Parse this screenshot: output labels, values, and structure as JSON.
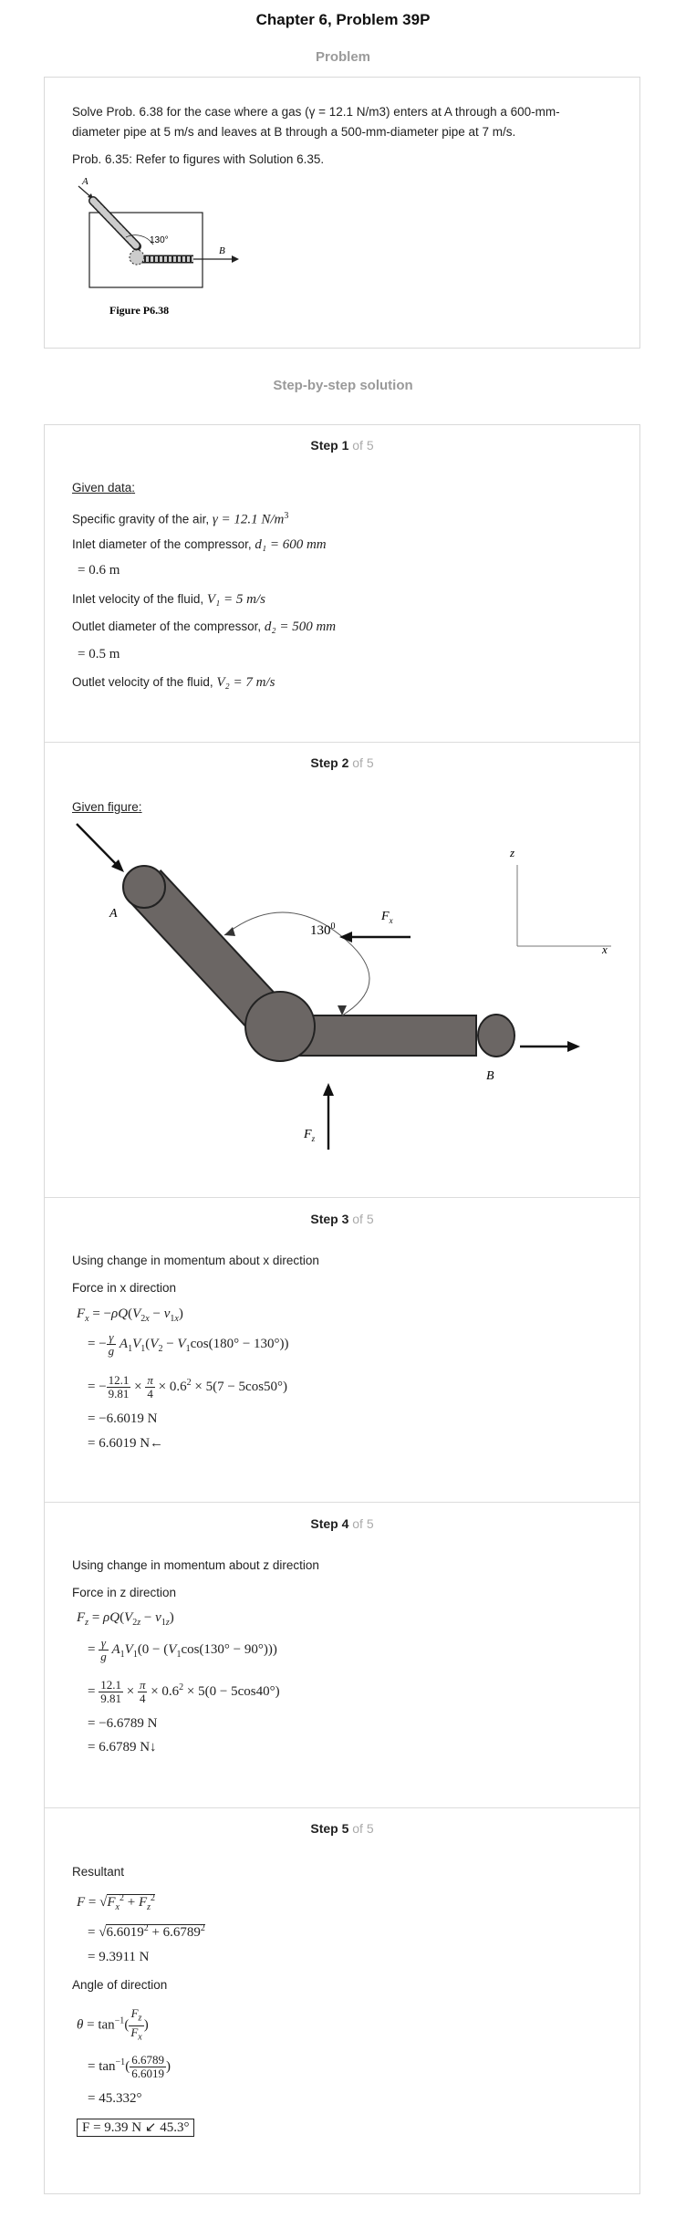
{
  "title": "Chapter 6, Problem 39P",
  "problem_heading": "Problem",
  "problem": {
    "text": "Solve Prob. 6.38 for the case where a gas (γ = 12.1 N/m3) enters at A through a 600-mm-diameter pipe at 5 m/s and leaves at B through a 500-mm-diameter pipe at 7 m/s.",
    "ref": "Prob. 6.35: Refer to figures with Solution 6.35.",
    "figure_caption": "Figure P6.38",
    "figure_labels": {
      "a": "A",
      "b": "B",
      "angle": "130°"
    }
  },
  "solution_heading": "Step-by-step solution",
  "steps": [
    {
      "num": "Step 1",
      "of": "of 5",
      "heading": "Given data",
      "lines": [
        "Specific gravity of the air,",
        "Inlet diameter of the compressor,",
        "Inlet velocity of the fluid,",
        "Outlet diameter of the compressor,",
        "Outlet velocity of the fluid,"
      ],
      "math": [
        "γ = 12.1 N/m",
        "d₁ = 600 mm",
        "= 0.6 m",
        "V₁ = 5 m/s",
        "d₂ = 500 mm",
        "= 0.5 m",
        "V₂ = 7 m/s"
      ]
    },
    {
      "num": "Step 2",
      "of": "of 5",
      "heading": "Given figure",
      "labels": {
        "a": "A",
        "b": "B",
        "angle": "130",
        "fx": "F",
        "fx_sub": "x",
        "fz": "F",
        "fz_sub": "z",
        "axis_z": "z",
        "axis_x": "x"
      }
    },
    {
      "num": "Step 3",
      "of": "of 5",
      "lines": [
        "Using change in momentum about x direction",
        "Force in x direction"
      ],
      "eq": [
        "= −6.6019 N",
        "= 6.6019 N←"
      ]
    },
    {
      "num": "Step 4",
      "of": "of 5",
      "lines": [
        "Using change in momentum about z direction",
        "Force in z direction"
      ],
      "eq": [
        "= −6.6789 N",
        "= 6.6789 N↓"
      ]
    },
    {
      "num": "Step 5",
      "of": "of 5",
      "lines": [
        "Resultant",
        "Angle of direction"
      ],
      "eq": [
        "= 9.3911 N",
        "= 45.332°"
      ],
      "answer": "F = 9.39 N ↙ 45.3°"
    }
  ]
}
